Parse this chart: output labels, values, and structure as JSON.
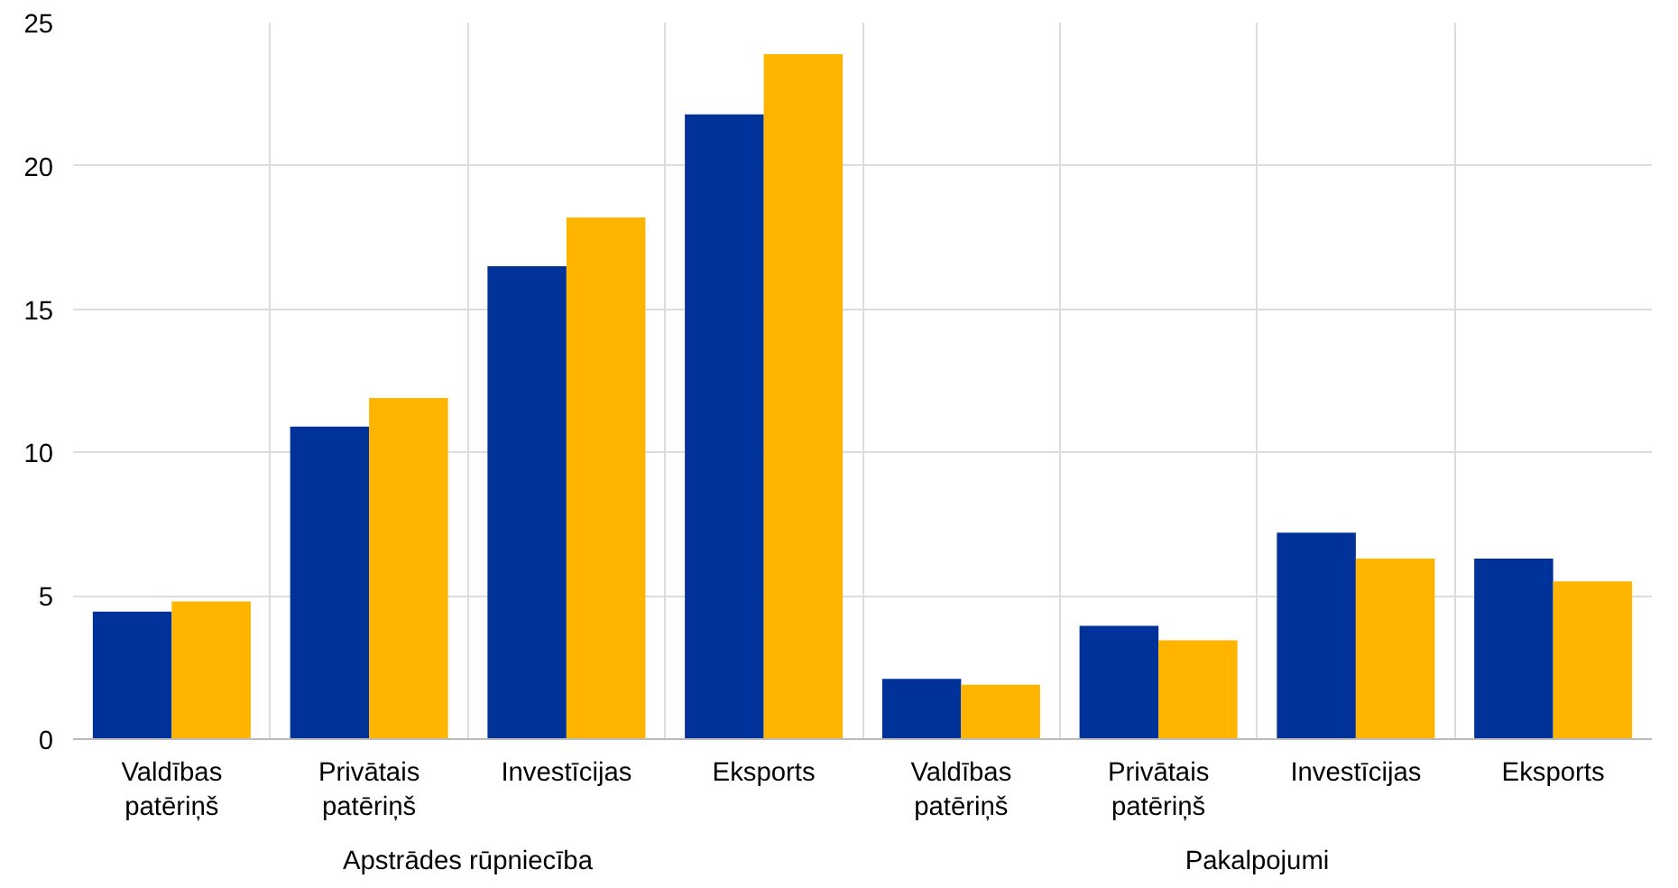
{
  "chart_data": {
    "type": "bar",
    "categories": [
      "Valdības\npatēriņš",
      "Privātais\npatēriņš",
      "Investīcijas",
      "Eksports",
      "Valdības\npatēriņš",
      "Privātais\npatēriņš",
      "Investīcijas",
      "Eksports"
    ],
    "series": [
      {
        "color": "#003299",
        "values": [
          4.45,
          10.9,
          16.5,
          21.8,
          2.1,
          3.95,
          7.2,
          6.3
        ]
      },
      {
        "color": "#ffb400",
        "values": [
          4.8,
          11.9,
          18.2,
          23.9,
          1.9,
          3.45,
          6.3,
          5.5
        ]
      }
    ],
    "ylim": [
      0,
      25
    ],
    "yticks": [
      0,
      5,
      10,
      15,
      20,
      25
    ],
    "grid": true,
    "annotations": [
      "Apstrādes rūpniecība",
      "Pakalpojumi"
    ]
  }
}
